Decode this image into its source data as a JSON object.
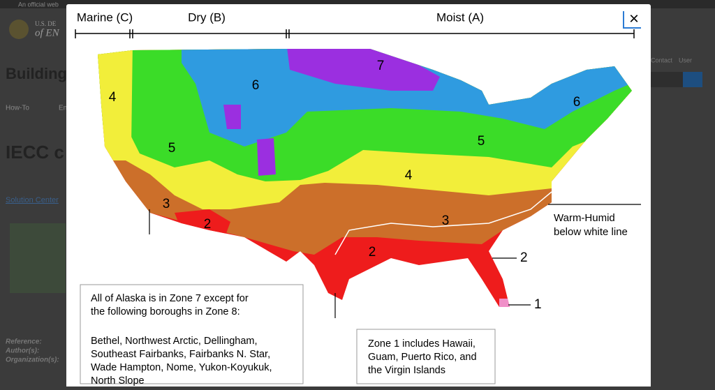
{
  "background": {
    "banner": "An official web",
    "logo_top": "U.S. DE",
    "logo_bottom": "of EN",
    "site_title": "Building",
    "nav": [
      "How-To",
      "En"
    ],
    "page_title": "IECC c",
    "breadcrumb": "Solution Center",
    "top_links": [
      "Contact",
      "User"
    ],
    "meta": [
      "Reference:",
      "Author(s):",
      "Organization(s):"
    ]
  },
  "modal": {
    "close": "×",
    "regions": [
      "Marine (C)",
      "Dry (B)",
      "Moist (A)"
    ],
    "zone_labels": [
      "7",
      "6",
      "6",
      "4",
      "5",
      "5",
      "4",
      "3",
      "2",
      "3",
      "2"
    ],
    "callouts": [
      "Warm-Humid",
      "below white line",
      "2",
      "1"
    ],
    "alaska_note": [
      "All of Alaska is in Zone 7 except for",
      "the following boroughs in Zone 8:",
      "Bethel, Northwest Arctic, Dellingham,",
      "Southeast Fairbanks, Fairbanks N. Star,",
      "Wade Hampton, Nome, Yukon-Koyukuk,",
      "North Slope"
    ],
    "zone1_note": [
      "Zone 1 includes Hawaii,",
      "Guam, Puerto Rico, and",
      "the Virgin Islands"
    ]
  }
}
